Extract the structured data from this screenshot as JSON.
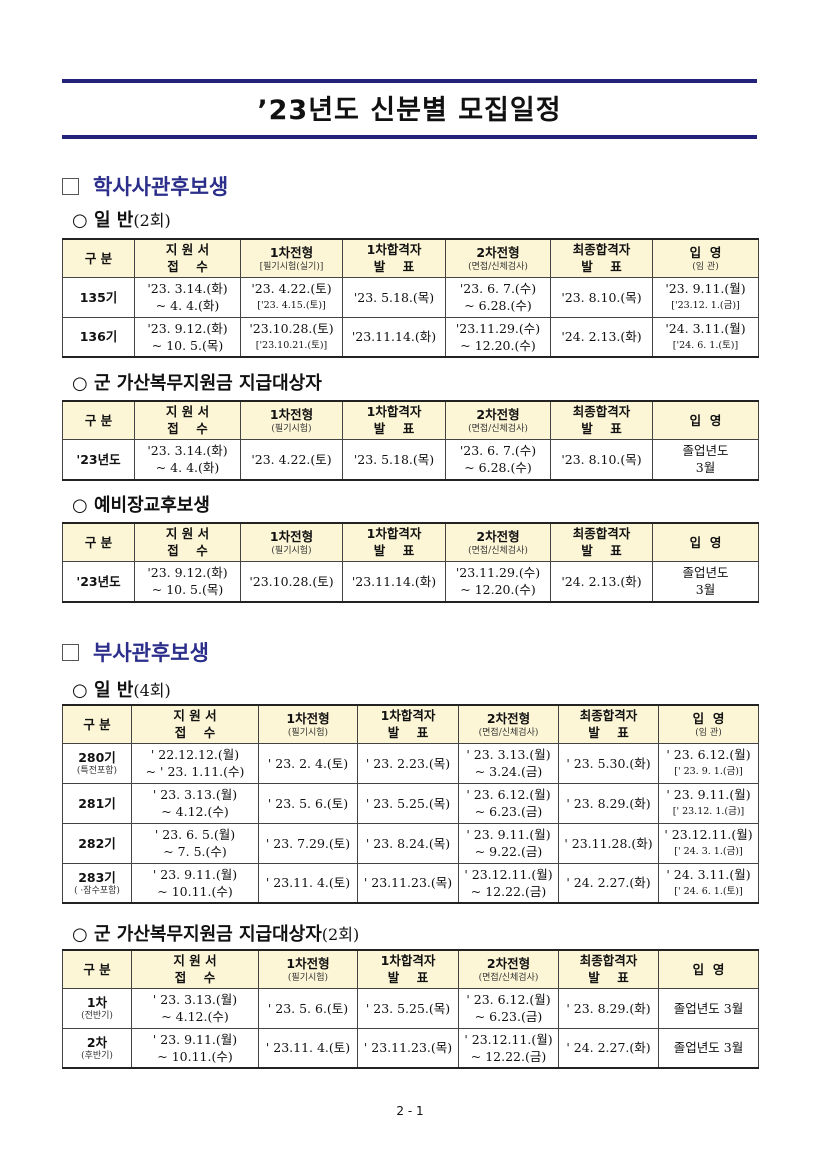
{
  "title": "’23년도 신분별 모집일정",
  "sections": [
    {
      "heading": "학사사관후보생"
    },
    {
      "heading": "부사관후보생"
    }
  ],
  "subheadings": [
    {
      "text": "○ 일  반",
      "paren": "(2회)"
    },
    {
      "text": "○ 군 가산복무지원금 지급대상자",
      "paren": ""
    },
    {
      "text": "○ 예비장교후보생",
      "paren": ""
    },
    {
      "text": "○ 일  반",
      "paren": "(4회)"
    },
    {
      "text": "○ 군 가산복무지원금 지급대상자",
      "paren": "(2회)"
    }
  ],
  "tables": [
    {
      "headers": [
        [
          "구 분",
          ""
        ],
        [
          "지 원 서\n접    수",
          ""
        ],
        [
          "1차전형",
          "[필기시험(실기)]"
        ],
        [
          "1차합격자\n발    표",
          ""
        ],
        [
          "2차전형",
          "(면접/신체검사)"
        ],
        [
          "최종합격자\n발    표",
          ""
        ],
        [
          "입  영",
          "(임 관)"
        ]
      ],
      "rows": [
        {
          "label": "135기",
          "sublabel": "",
          "cells": [
            [
              "'23. 3.14.(화)",
              "~ 4. 4.(화)"
            ],
            [
              "'23. 4.22.(토)",
              "['23. 4.15.(토)]"
            ],
            [
              "'23. 5.18.(목)"
            ],
            [
              "'23. 6. 7.(수)",
              "~ 6.28.(수)"
            ],
            [
              "'23. 8.10.(목)"
            ],
            [
              "'23. 9.11.(월)",
              "['23.12. 1.(금)]"
            ]
          ]
        },
        {
          "label": "136기",
          "sublabel": "",
          "cells": [
            [
              "'23. 9.12.(화)",
              "~ 10. 5.(목)"
            ],
            [
              "'23.10.28.(토)",
              "['23.10.21.(토)]"
            ],
            [
              "'23.11.14.(화)"
            ],
            [
              "'23.11.29.(수)",
              "~ 12.20.(수)"
            ],
            [
              "'24. 2.13.(화)"
            ],
            [
              "'24. 3.11.(월)",
              "['24. 6. 1.(토)]"
            ]
          ]
        }
      ]
    },
    {
      "headers": [
        [
          "구 분",
          ""
        ],
        [
          "지 원 서\n접    수",
          ""
        ],
        [
          "1차전형",
          "(필기시험)"
        ],
        [
          "1차합격자\n발    표",
          ""
        ],
        [
          "2차전형",
          "(면접/신체검사)"
        ],
        [
          "최종합격자\n발    표",
          ""
        ],
        [
          "입  영",
          ""
        ]
      ],
      "rows": [
        {
          "label": "'23년도",
          "sublabel": "",
          "cells": [
            [
              "'23. 3.14.(화)",
              "~ 4. 4.(화)"
            ],
            [
              "'23. 4.22.(토)"
            ],
            [
              "'23. 5.18.(목)"
            ],
            [
              "'23. 6. 7.(수)",
              "~ 6.28.(수)"
            ],
            [
              "'23. 8.10.(목)"
            ],
            [
              "졸업년도",
              "3월"
            ]
          ]
        }
      ]
    },
    {
      "headers": [
        [
          "구 분",
          ""
        ],
        [
          "지 원 서\n접    수",
          ""
        ],
        [
          "1차전형",
          "(필기시험)"
        ],
        [
          "1차합격자\n발    표",
          ""
        ],
        [
          "2차전형",
          "(면접/신체검사)"
        ],
        [
          "최종합격자\n발    표",
          ""
        ],
        [
          "입  영",
          ""
        ]
      ],
      "rows": [
        {
          "label": "'23년도",
          "sublabel": "",
          "cells": [
            [
              "'23. 9.12.(화)",
              "~ 10. 5.(목)"
            ],
            [
              "'23.10.28.(토)"
            ],
            [
              "'23.11.14.(화)"
            ],
            [
              "'23.11.29.(수)",
              "~ 12.20.(수)"
            ],
            [
              "'24. 2.13.(화)"
            ],
            [
              "졸업년도",
              "3월"
            ]
          ]
        }
      ]
    },
    {
      "headers": [
        [
          "구 분",
          ""
        ],
        [
          "지 원 서\n접    수",
          ""
        ],
        [
          "1차전형",
          "(필기시험)"
        ],
        [
          "1차합격자\n발    표",
          ""
        ],
        [
          "2차전형",
          "(면접/신체검사)"
        ],
        [
          "최종합격자\n발    표",
          ""
        ],
        [
          "입  영",
          "(임  관)"
        ]
      ],
      "rows": [
        {
          "label": "280기",
          "sublabel": "(특전포함)",
          "cells": [
            [
              "' 22.12.12.(월)",
              "~ ' 23. 1.11.(수)"
            ],
            [
              "' 23. 2. 4.(토)"
            ],
            [
              "' 23. 2.23.(목)"
            ],
            [
              "' 23. 3.13.(월)",
              "~ 3.24.(금)"
            ],
            [
              "' 23. 5.30.(화)"
            ],
            [
              "' 23. 6.12.(월)",
              "[' 23. 9. 1.(금)]"
            ]
          ]
        },
        {
          "label": "281기",
          "sublabel": "",
          "cells": [
            [
              "' 23. 3.13.(월)",
              "~ 4.12.(수)"
            ],
            [
              "' 23. 5. 6.(토)"
            ],
            [
              "' 23. 5.25.(목)"
            ],
            [
              "' 23. 6.12.(월)",
              "~ 6.23.(금)"
            ],
            [
              "' 23. 8.29.(화)"
            ],
            [
              "' 23. 9.11.(월)",
              "[' 23.12. 1.(금)]"
            ]
          ]
        },
        {
          "label": "282기",
          "sublabel": "",
          "cells": [
            [
              "' 23. 6. 5.(월)",
              "~ 7. 5.(수)"
            ],
            [
              "' 23. 7.29.(토)"
            ],
            [
              "' 23. 8.24.(목)"
            ],
            [
              "' 23. 9.11.(월)",
              "~ 9.22.(금)"
            ],
            [
              "' 23.11.28.(화)"
            ],
            [
              "' 23.12.11.(월)",
              "[' 24. 3. 1.(금)]"
            ]
          ]
        },
        {
          "label": "283기",
          "sublabel": "(    ·잠수포함)",
          "cells": [
            [
              "' 23. 9.11.(월)",
              "~ 10.11.(수)"
            ],
            [
              "' 23.11. 4.(토)"
            ],
            [
              "' 23.11.23.(목)"
            ],
            [
              "' 23.12.11.(월)",
              "~ 12.22.(금)"
            ],
            [
              "' 24. 2.27.(화)"
            ],
            [
              "' 24. 3.11.(월)",
              "[' 24. 6. 1.(토)]"
            ]
          ]
        }
      ]
    },
    {
      "headers": [
        [
          "구 분",
          ""
        ],
        [
          "지 원 서\n접    수",
          ""
        ],
        [
          "1차전형",
          "(필기시험)"
        ],
        [
          "1차합격자\n발    표",
          ""
        ],
        [
          "2차전형",
          "(면접/신체검사)"
        ],
        [
          "최종합격자\n발    표",
          ""
        ],
        [
          "입  영",
          ""
        ]
      ],
      "rows": [
        {
          "label": "1차",
          "sublabel": "(전반기)",
          "cells": [
            [
              "' 23. 3.13.(월)",
              "~ 4.12.(수)"
            ],
            [
              "' 23. 5. 6.(토)"
            ],
            [
              "' 23. 5.25.(목)"
            ],
            [
              "' 23. 6.12.(월)",
              "~ 6.23.(금)"
            ],
            [
              "' 23. 8.29.(화)"
            ],
            [
              "졸업년도 3월"
            ]
          ]
        },
        {
          "label": "2차",
          "sublabel": "(후반기)",
          "cells": [
            [
              "' 23. 9.11.(월)",
              "~ 10.11.(수)"
            ],
            [
              "' 23.11. 4.(토)"
            ],
            [
              "' 23.11.23.(목)"
            ],
            [
              "' 23.12.11.(월)",
              "~ 12.22.(금)"
            ],
            [
              "' 24. 2.27.(화)"
            ],
            [
              "졸업년도 3월"
            ]
          ]
        }
      ]
    }
  ],
  "footer": "2 - 1",
  "colors": {
    "rule": "#23237a",
    "heading": "#2b2e8a",
    "header_bg": "#fdf6d6"
  }
}
